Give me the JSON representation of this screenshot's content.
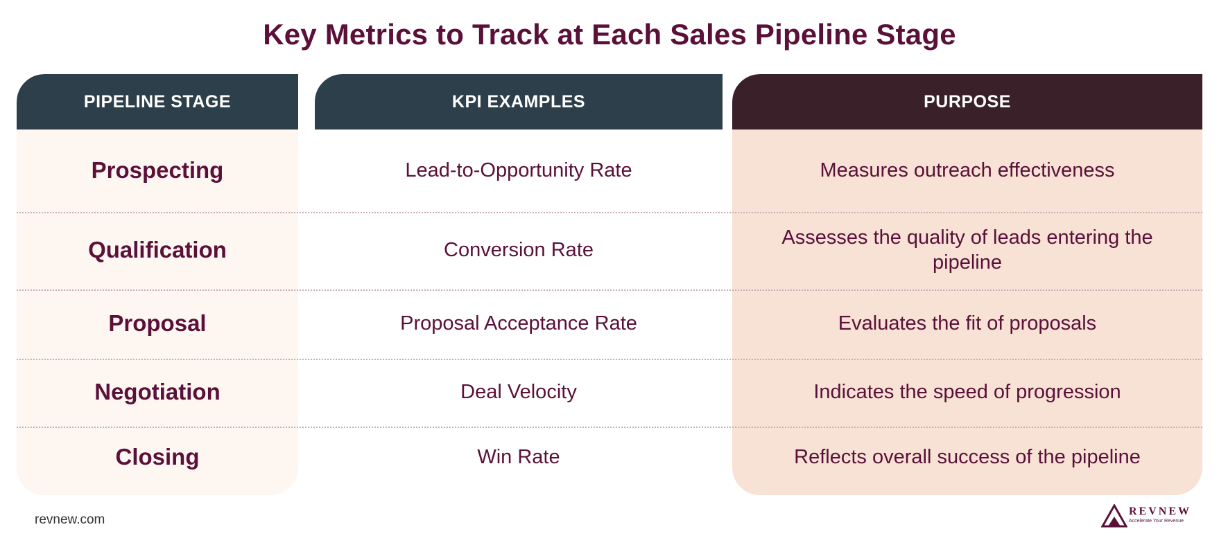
{
  "title": "Key Metrics to Track at Each Sales Pipeline Stage",
  "headers": {
    "stage": "PIPELINE STAGE",
    "kpi": "KPI EXAMPLES",
    "purpose": "PURPOSE"
  },
  "rows": [
    {
      "stage": "Prospecting",
      "kpi": "Lead-to-Opportunity Rate",
      "purpose": "Measures outreach effectiveness"
    },
    {
      "stage": "Qualification",
      "kpi": "Conversion Rate",
      "purpose": "Assesses the quality of leads entering the pipeline"
    },
    {
      "stage": "Proposal",
      "kpi": "Proposal Acceptance Rate",
      "purpose": "Evaluates the fit of proposals"
    },
    {
      "stage": "Negotiation",
      "kpi": "Deal Velocity",
      "purpose": "Indicates the speed of progression"
    },
    {
      "stage": "Closing",
      "kpi": "Win Rate",
      "purpose": "Reflects overall success of the pipeline"
    }
  ],
  "footer": {
    "site": "revnew.com",
    "logo_word": "REVNEW",
    "logo_tagline": "Accelerate Your Revenue"
  },
  "colors": {
    "accent": "#5a1038",
    "header_dark": "#2c3f4a",
    "header_purpose": "#3a2129",
    "stage_bg": "#fdf6f1",
    "purpose_bg": "#f7e2d5"
  },
  "icons": {
    "logo": "revnew-mountain-logo-icon"
  }
}
